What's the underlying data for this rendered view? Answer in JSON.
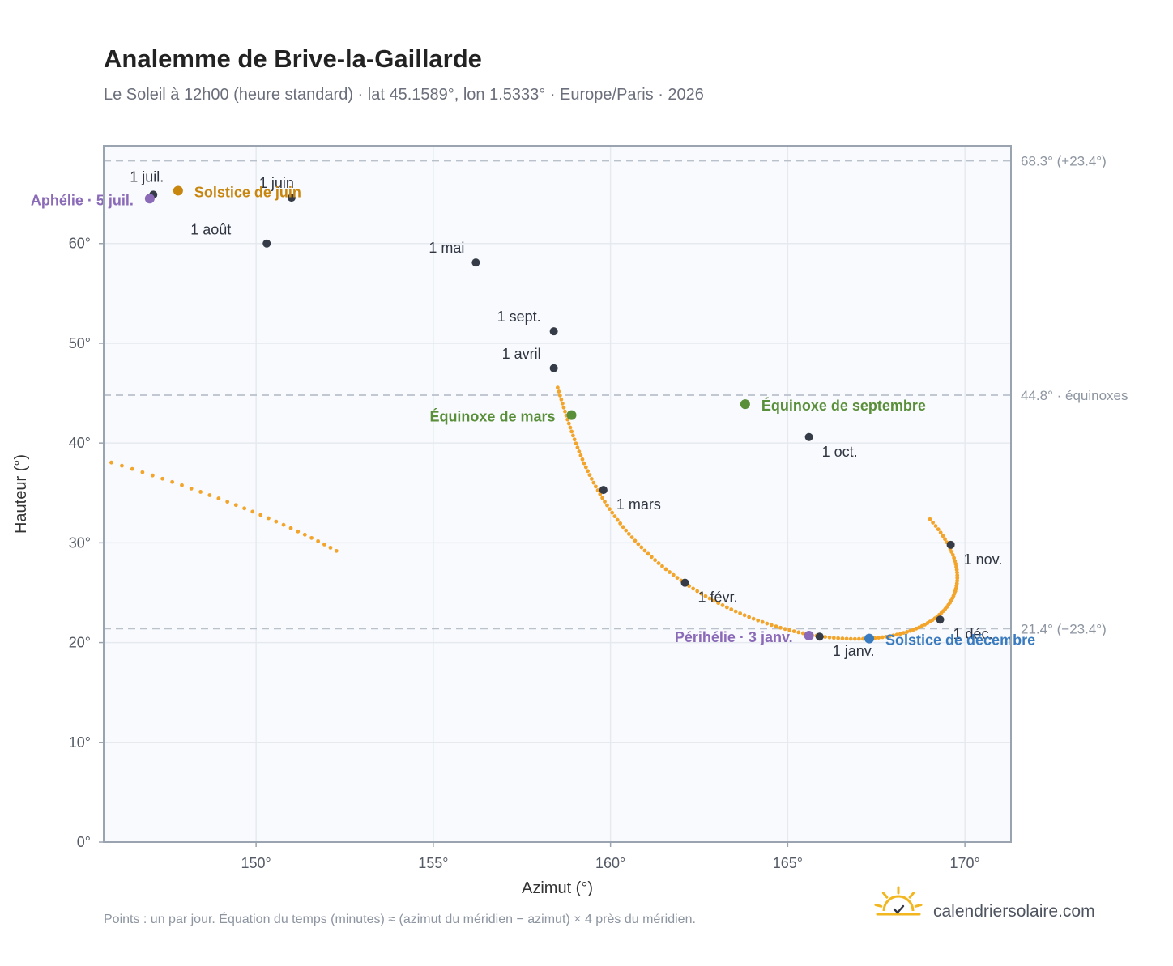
{
  "header": {
    "title": "Analemme de Brive-la-Gaillarde",
    "subtitle": "Le Soleil à 12h00 (heure standard) · lat 45.1589°, lon 1.5333° · Europe/Paris · 2026"
  },
  "footer": {
    "note": "Points : un par jour. Équation du temps (minutes) ≈ (azimut du méridien − azimut) × 4 près du méridien.",
    "brand": "calendriersolaire.com"
  },
  "colors": {
    "analemma": "#f2a52a",
    "month_marker": "#353b47",
    "solstice_june": "#c8860f",
    "solstice_december": "#3a7bbf",
    "equinox": "#5a8f3a",
    "aphelion": "#8b6bb8",
    "perihelion": "#8b6bb8",
    "reference_line": "#b9c1cb",
    "grid": "#e6e9ee",
    "plot_bg": "#f8fafd",
    "axis": "#9aa3b0",
    "logo": "#f2b61f"
  },
  "chart_data": {
    "type": "scatter",
    "xlabel": "Azimut (°)",
    "ylabel": "Hauteur (°)",
    "xlim": [
      145.7,
      171.3
    ],
    "ylim": [
      0,
      69.8
    ],
    "x_ticks": [
      150,
      155,
      160,
      165,
      170
    ],
    "x_tick_labels": [
      "150°",
      "155°",
      "160°",
      "165°",
      "170°"
    ],
    "y_ticks": [
      0,
      10,
      20,
      30,
      40,
      50,
      60
    ],
    "y_tick_labels": [
      "0°",
      "10°",
      "20°",
      "30°",
      "40°",
      "50°",
      "60°"
    ],
    "grid": true,
    "reference_lines": [
      {
        "y": 68.3,
        "label": "68.3° (+23.4°)"
      },
      {
        "y": 44.8,
        "label": "44.8° · équinoxes"
      },
      {
        "y": 21.4,
        "label": "21.4° (−23.4°)"
      }
    ],
    "month_markers": [
      {
        "label": "1 janv.",
        "x": 165.9,
        "y": 20.6
      },
      {
        "label": "1 févr.",
        "x": 162.1,
        "y": 26.0
      },
      {
        "label": "1 mars",
        "x": 159.8,
        "y": 35.3
      },
      {
        "label": "1 avril",
        "x": 158.4,
        "y": 47.5
      },
      {
        "label": "1 mai",
        "x": 156.2,
        "y": 58.1
      },
      {
        "label": "1 juin",
        "x": 151.0,
        "y": 64.6
      },
      {
        "label": "1 juil.",
        "x": 147.1,
        "y": 64.9
      },
      {
        "label": "1 août",
        "x": 150.3,
        "y": 60.0
      },
      {
        "label": "1 sept.",
        "x": 158.4,
        "y": 51.2
      },
      {
        "label": "1 oct.",
        "x": 165.6,
        "y": 40.6
      },
      {
        "label": "1 nov.",
        "x": 169.6,
        "y": 29.8
      },
      {
        "label": "1 déc.",
        "x": 169.3,
        "y": 22.3
      }
    ],
    "events": [
      {
        "label": "Solstice de juin",
        "x": 147.8,
        "y": 65.3,
        "color_key": "solstice_june"
      },
      {
        "label": "Aphélie · 5 juil.",
        "x": 147.0,
        "y": 64.5,
        "color_key": "aphelion"
      },
      {
        "label": "Équinoxe de mars",
        "x": 158.9,
        "y": 42.8,
        "color_key": "equinox"
      },
      {
        "label": "Équinoxe de septembre",
        "x": 163.8,
        "y": 43.9,
        "color_key": "equinox"
      },
      {
        "label": "Périhélie · 3 janv.",
        "x": 165.6,
        "y": 20.7,
        "color_key": "perihelion"
      },
      {
        "label": "Solstice de décembre",
        "x": 167.3,
        "y": 20.4,
        "color_key": "solstice_december"
      }
    ]
  }
}
